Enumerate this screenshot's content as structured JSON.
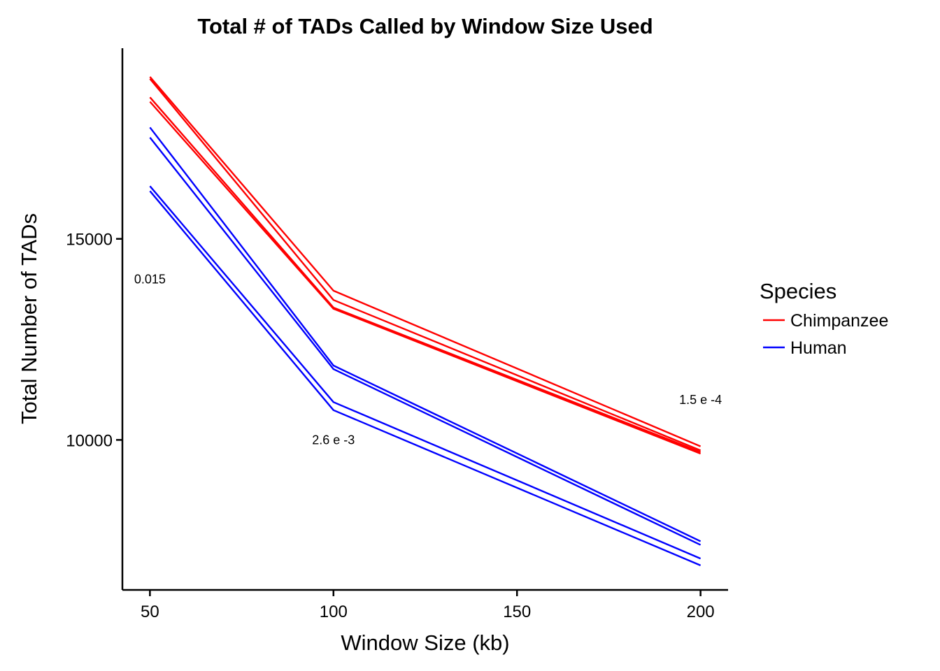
{
  "chart_data": {
    "type": "line",
    "title": "Total # of TADs Called by Window Size Used",
    "xlabel": "Window Size (kb)",
    "ylabel": "Total Number of TADs",
    "x": [
      50,
      100,
      200
    ],
    "x_ticks": [
      "50",
      "100",
      "150",
      "200"
    ],
    "y_ticks": [
      "10000",
      "15000"
    ],
    "xlim": [
      42.5,
      207.5
    ],
    "ylim": [
      6270,
      19740
    ],
    "grid": false,
    "legend": {
      "title": "Species",
      "position": "right",
      "entries": [
        {
          "label": "Chimpanzee",
          "color": "#ff0000"
        },
        {
          "label": "Human",
          "color": "#0000ff"
        }
      ]
    },
    "series": [
      {
        "species": "Chimpanzee",
        "color": "#ff0000",
        "values": [
          19030,
          13710,
          9840
        ]
      },
      {
        "species": "Chimpanzee",
        "color": "#ff0000",
        "values": [
          18980,
          13480,
          9740
        ]
      },
      {
        "species": "Chimpanzee",
        "color": "#ff0000",
        "values": [
          18520,
          13290,
          9700
        ]
      },
      {
        "species": "Chimpanzee",
        "color": "#ff0000",
        "values": [
          18410,
          13260,
          9660
        ]
      },
      {
        "species": "Human",
        "color": "#0000ff",
        "values": [
          17770,
          11850,
          7480
        ]
      },
      {
        "species": "Human",
        "color": "#0000ff",
        "values": [
          17520,
          11760,
          7390
        ]
      },
      {
        "species": "Human",
        "color": "#0000ff",
        "values": [
          16310,
          10940,
          7050
        ]
      },
      {
        "species": "Human",
        "color": "#0000ff",
        "values": [
          16190,
          10740,
          6880
        ]
      }
    ],
    "annotations": [
      {
        "text": "0.015",
        "x": 50,
        "y": 14000
      },
      {
        "text": "2.6 e -3",
        "x": 100,
        "y": 10000
      },
      {
        "text": "1.5 e -4",
        "x": 200,
        "y": 11000
      }
    ]
  }
}
